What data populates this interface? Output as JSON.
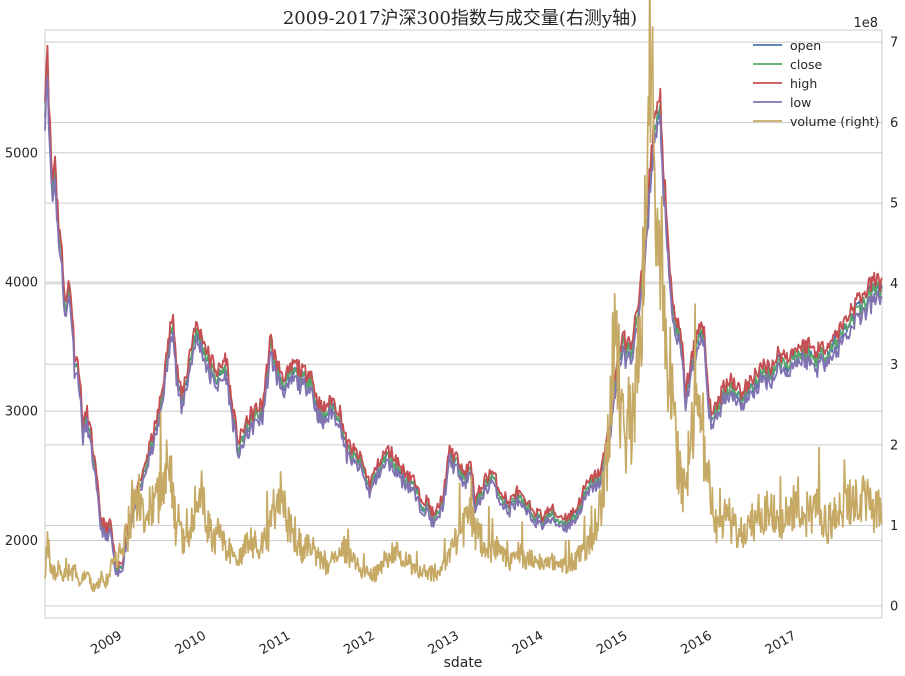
{
  "chart_data": {
    "type": "line",
    "title": "2009-2017沪深300指数与成交量(右测y轴)",
    "xlabel": "sdate",
    "ylabel": "",
    "x_range": [
      2008.0,
      2017.93
    ],
    "ylim": [
      1400,
      5950
    ],
    "ylim_right": [
      -0.15,
      7.15
    ],
    "right_axis_multiplier": "1e8",
    "grid": true,
    "legend_position": "top-right",
    "x_ticks": [
      {
        "value": 2008.85,
        "label": "2009"
      },
      {
        "value": 2009.85,
        "label": "2010"
      },
      {
        "value": 2010.85,
        "label": "2011"
      },
      {
        "value": 2011.85,
        "label": "2012"
      },
      {
        "value": 2012.85,
        "label": "2013"
      },
      {
        "value": 2013.85,
        "label": "2014"
      },
      {
        "value": 2014.85,
        "label": "2015"
      },
      {
        "value": 2015.85,
        "label": "2016"
      },
      {
        "value": 2016.85,
        "label": "2017"
      }
    ],
    "y_ticks_left": [
      2000,
      3000,
      4000,
      5000
    ],
    "y_ticks_right": [
      0,
      1,
      2,
      3,
      4,
      5,
      6,
      7
    ],
    "y_labels_left": [
      "2000",
      "3000",
      "4000",
      "5000"
    ],
    "y_labels_right": [
      "0",
      "1",
      "2",
      "3",
      "4",
      "5",
      "6",
      "7"
    ],
    "series": [
      {
        "name": "open",
        "axis": "left",
        "color": "#4c72b0"
      },
      {
        "name": "close",
        "axis": "left",
        "color": "#55a868"
      },
      {
        "name": "high",
        "axis": "left",
        "color": "#c44e52"
      },
      {
        "name": "low",
        "axis": "left",
        "color": "#8172b2"
      },
      {
        "name": "volume (right)",
        "axis": "right",
        "color": "#c5a964"
      }
    ],
    "price_points": [
      [
        2008.0,
        5400
      ],
      [
        2008.03,
        5750
      ],
      [
        2008.06,
        5050
      ],
      [
        2008.09,
        4700
      ],
      [
        2008.12,
        4900
      ],
      [
        2008.15,
        4500
      ],
      [
        2008.2,
        4150
      ],
      [
        2008.25,
        3750
      ],
      [
        2008.28,
        3950
      ],
      [
        2008.31,
        3850
      ],
      [
        2008.35,
        3400
      ],
      [
        2008.4,
        3300
      ],
      [
        2008.45,
        2850
      ],
      [
        2008.5,
        2950
      ],
      [
        2008.55,
        2750
      ],
      [
        2008.6,
        2500
      ],
      [
        2008.66,
        2150
      ],
      [
        2008.72,
        2050
      ],
      [
        2008.78,
        2100
      ],
      [
        2008.84,
        1750
      ],
      [
        2008.88,
        1780
      ],
      [
        2008.92,
        1820
      ],
      [
        2008.97,
        2050
      ],
      [
        2009.05,
        2250
      ],
      [
        2009.15,
        2450
      ],
      [
        2009.25,
        2700
      ],
      [
        2009.35,
        2950
      ],
      [
        2009.45,
        3400
      ],
      [
        2009.52,
        3750
      ],
      [
        2009.56,
        3300
      ],
      [
        2009.62,
        3050
      ],
      [
        2009.68,
        3250
      ],
      [
        2009.78,
        3600
      ],
      [
        2009.85,
        3550
      ],
      [
        2009.95,
        3350
      ],
      [
        2010.05,
        3250
      ],
      [
        2010.15,
        3350
      ],
      [
        2010.22,
        3000
      ],
      [
        2010.3,
        2700
      ],
      [
        2010.38,
        2850
      ],
      [
        2010.48,
        2950
      ],
      [
        2010.58,
        3000
      ],
      [
        2010.68,
        3500
      ],
      [
        2010.75,
        3300
      ],
      [
        2010.85,
        3200
      ],
      [
        2010.95,
        3300
      ],
      [
        2011.05,
        3250
      ],
      [
        2011.15,
        3250
      ],
      [
        2011.22,
        3050
      ],
      [
        2011.3,
        2950
      ],
      [
        2011.4,
        3050
      ],
      [
        2011.5,
        2950
      ],
      [
        2011.58,
        2700
      ],
      [
        2011.65,
        2650
      ],
      [
        2011.75,
        2600
      ],
      [
        2011.85,
        2400
      ],
      [
        2011.95,
        2550
      ],
      [
        2012.05,
        2650
      ],
      [
        2012.15,
        2600
      ],
      [
        2012.25,
        2500
      ],
      [
        2012.35,
        2450
      ],
      [
        2012.45,
        2300
      ],
      [
        2012.55,
        2250
      ],
      [
        2012.62,
        2150
      ],
      [
        2012.72,
        2300
      ],
      [
        2012.8,
        2650
      ],
      [
        2012.88,
        2600
      ],
      [
        2012.98,
        2450
      ],
      [
        2013.05,
        2600
      ],
      [
        2013.1,
        2250
      ],
      [
        2013.2,
        2400
      ],
      [
        2013.3,
        2500
      ],
      [
        2013.4,
        2350
      ],
      [
        2013.5,
        2250
      ],
      [
        2013.6,
        2350
      ],
      [
        2013.7,
        2250
      ],
      [
        2013.8,
        2200
      ],
      [
        2013.9,
        2150
      ],
      [
        2014.0,
        2200
      ],
      [
        2014.1,
        2150
      ],
      [
        2014.2,
        2150
      ],
      [
        2014.3,
        2200
      ],
      [
        2014.4,
        2350
      ],
      [
        2014.5,
        2450
      ],
      [
        2014.6,
        2500
      ],
      [
        2014.7,
        2850
      ],
      [
        2014.8,
        3400
      ],
      [
        2014.85,
        3500
      ],
      [
        2014.95,
        3450
      ],
      [
        2015.05,
        3800
      ],
      [
        2015.12,
        4250
      ],
      [
        2015.22,
        5150
      ],
      [
        2015.3,
        5300
      ],
      [
        2015.38,
        4300
      ],
      [
        2015.45,
        3750
      ],
      [
        2015.55,
        3500
      ],
      [
        2015.6,
        3100
      ],
      [
        2015.66,
        3300
      ],
      [
        2015.75,
        3600
      ],
      [
        2015.82,
        3550
      ],
      [
        2015.88,
        3000
      ],
      [
        2015.95,
        2950
      ],
      [
        2016.05,
        3150
      ],
      [
        2016.15,
        3200
      ],
      [
        2016.25,
        3100
      ],
      [
        2016.35,
        3150
      ],
      [
        2016.45,
        3250
      ],
      [
        2016.55,
        3300
      ],
      [
        2016.62,
        3300
      ],
      [
        2016.72,
        3400
      ],
      [
        2016.8,
        3350
      ],
      [
        2016.85,
        3400
      ],
      [
        2016.95,
        3450
      ],
      [
        2017.05,
        3450
      ],
      [
        2017.15,
        3400
      ],
      [
        2017.25,
        3450
      ],
      [
        2017.35,
        3500
      ],
      [
        2017.45,
        3600
      ],
      [
        2017.55,
        3700
      ],
      [
        2017.65,
        3800
      ],
      [
        2017.75,
        3850
      ],
      [
        2017.85,
        3950
      ],
      [
        2017.93,
        3950
      ]
    ],
    "volume_points": [
      [
        2008.0,
        0.4
      ],
      [
        2008.03,
        0.8
      ],
      [
        2008.06,
        0.55
      ],
      [
        2008.1,
        0.35
      ],
      [
        2008.15,
        0.45
      ],
      [
        2008.2,
        0.35
      ],
      [
        2008.25,
        0.5
      ],
      [
        2008.3,
        0.35
      ],
      [
        2008.35,
        0.45
      ],
      [
        2008.4,
        0.25
      ],
      [
        2008.45,
        0.35
      ],
      [
        2008.5,
        0.4
      ],
      [
        2008.55,
        0.25
      ],
      [
        2008.6,
        0.2
      ],
      [
        2008.66,
        0.35
      ],
      [
        2008.72,
        0.3
      ],
      [
        2008.78,
        0.45
      ],
      [
        2008.84,
        0.6
      ],
      [
        2008.9,
        0.7
      ],
      [
        2008.95,
        0.8
      ],
      [
        2009.0,
        0.9
      ],
      [
        2009.05,
        1.2
      ],
      [
        2009.1,
        1.4
      ],
      [
        2009.15,
        1.2
      ],
      [
        2009.2,
        1.1
      ],
      [
        2009.25,
        1.2
      ],
      [
        2009.3,
        1.3
      ],
      [
        2009.38,
        1.4
      ],
      [
        2009.45,
        1.8
      ],
      [
        2009.5,
        1.5
      ],
      [
        2009.55,
        1.0
      ],
      [
        2009.6,
        0.9
      ],
      [
        2009.65,
        0.8
      ],
      [
        2009.7,
        0.9
      ],
      [
        2009.78,
        1.2
      ],
      [
        2009.85,
        1.4
      ],
      [
        2009.92,
        1.0
      ],
      [
        2010.0,
        0.8
      ],
      [
        2010.05,
        0.9
      ],
      [
        2010.1,
        0.8
      ],
      [
        2010.18,
        0.7
      ],
      [
        2010.25,
        0.6
      ],
      [
        2010.35,
        0.7
      ],
      [
        2010.45,
        0.8
      ],
      [
        2010.55,
        0.7
      ],
      [
        2010.65,
        0.9
      ],
      [
        2010.72,
        1.2
      ],
      [
        2010.78,
        1.4
      ],
      [
        2010.85,
        1.1
      ],
      [
        2010.95,
        0.9
      ],
      [
        2011.05,
        0.7
      ],
      [
        2011.15,
        0.8
      ],
      [
        2011.25,
        0.6
      ],
      [
        2011.35,
        0.5
      ],
      [
        2011.45,
        0.6
      ],
      [
        2011.55,
        0.7
      ],
      [
        2011.65,
        0.55
      ],
      [
        2011.75,
        0.45
      ],
      [
        2011.85,
        0.4
      ],
      [
        2011.95,
        0.4
      ],
      [
        2012.05,
        0.6
      ],
      [
        2012.15,
        0.7
      ],
      [
        2012.25,
        0.55
      ],
      [
        2012.35,
        0.5
      ],
      [
        2012.45,
        0.45
      ],
      [
        2012.55,
        0.4
      ],
      [
        2012.65,
        0.4
      ],
      [
        2012.75,
        0.5
      ],
      [
        2012.85,
        0.8
      ],
      [
        2012.95,
        0.9
      ],
      [
        2013.05,
        1.2
      ],
      [
        2013.1,
        0.9
      ],
      [
        2013.2,
        0.8
      ],
      [
        2013.3,
        0.7
      ],
      [
        2013.4,
        0.65
      ],
      [
        2013.5,
        0.55
      ],
      [
        2013.6,
        0.7
      ],
      [
        2013.7,
        0.6
      ],
      [
        2013.8,
        0.55
      ],
      [
        2013.9,
        0.5
      ],
      [
        2014.0,
        0.55
      ],
      [
        2014.1,
        0.45
      ],
      [
        2014.2,
        0.5
      ],
      [
        2014.3,
        0.55
      ],
      [
        2014.4,
        0.7
      ],
      [
        2014.5,
        0.9
      ],
      [
        2014.6,
        1.2
      ],
      [
        2014.7,
        2.2
      ],
      [
        2014.75,
        3.5
      ],
      [
        2014.8,
        3.0
      ],
      [
        2014.85,
        2.2
      ],
      [
        2014.9,
        2.0
      ],
      [
        2014.98,
        2.4
      ],
      [
        2015.05,
        3.0
      ],
      [
        2015.1,
        4.0
      ],
      [
        2015.15,
        5.2
      ],
      [
        2015.2,
        6.0
      ],
      [
        2015.25,
        5.5
      ],
      [
        2015.3,
        4.5
      ],
      [
        2015.35,
        3.5
      ],
      [
        2015.4,
        3.0
      ],
      [
        2015.45,
        2.5
      ],
      [
        2015.5,
        1.8
      ],
      [
        2015.55,
        1.5
      ],
      [
        2015.6,
        1.6
      ],
      [
        2015.65,
        2.0
      ],
      [
        2015.72,
        2.4
      ],
      [
        2015.8,
        2.2
      ],
      [
        2015.85,
        1.8
      ],
      [
        2015.9,
        1.5
      ],
      [
        2015.95,
        1.0
      ],
      [
        2016.0,
        0.9
      ],
      [
        2016.08,
        1.2
      ],
      [
        2016.15,
        1.0
      ],
      [
        2016.25,
        0.9
      ],
      [
        2016.35,
        1.0
      ],
      [
        2016.45,
        1.1
      ],
      [
        2016.55,
        1.2
      ],
      [
        2016.65,
        1.1
      ],
      [
        2016.75,
        1.0
      ],
      [
        2016.85,
        1.2
      ],
      [
        2016.95,
        1.3
      ],
      [
        2017.05,
        1.1
      ],
      [
        2017.15,
        1.2
      ],
      [
        2017.25,
        1.0
      ],
      [
        2017.35,
        1.1
      ],
      [
        2017.45,
        1.2
      ],
      [
        2017.55,
        1.3
      ],
      [
        2017.65,
        1.4
      ],
      [
        2017.75,
        1.3
      ],
      [
        2017.85,
        1.2
      ],
      [
        2017.93,
        1.1
      ]
    ]
  }
}
